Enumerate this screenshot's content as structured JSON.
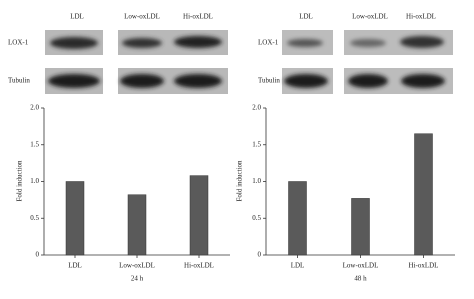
{
  "blots": [
    {
      "columns": [
        "LDL",
        "Low-oxLDL",
        "Hi-oxLDL"
      ],
      "rows": [
        "LOX-1",
        "Tubulin"
      ]
    },
    {
      "columns": [
        "LDL",
        "Low-oxLDL",
        "Hi-oxLDL"
      ],
      "rows": [
        "LOX-1",
        "Tubulin"
      ]
    }
  ],
  "chart_data": [
    {
      "type": "bar",
      "ylabel": "Fold induction",
      "xlabel": "24 h",
      "categories": [
        "LDL",
        "Low-oxLDL",
        "Hi-oxLDL"
      ],
      "values": [
        1.0,
        0.82,
        1.08
      ],
      "color": "#5a5a5a",
      "ylim": [
        0,
        2
      ],
      "yticks": [
        0,
        0.5,
        {
          "value": 1,
          "label": "1.0"
        },
        1.5,
        {
          "value": 2,
          "label": "2.0"
        }
      ]
    },
    {
      "type": "bar",
      "ylabel": "Fold induction",
      "xlabel": "48 h",
      "categories": [
        "LDL",
        "Low-oxLDL",
        "Hi-oxLDL"
      ],
      "values": [
        1.0,
        0.77,
        1.65
      ],
      "color": "#5a5a5a",
      "ylim": [
        0,
        2
      ],
      "yticks": [
        0,
        0.5,
        {
          "value": 1,
          "label": "1.0"
        },
        1.5,
        {
          "value": 2,
          "label": "2.0"
        }
      ]
    }
  ]
}
